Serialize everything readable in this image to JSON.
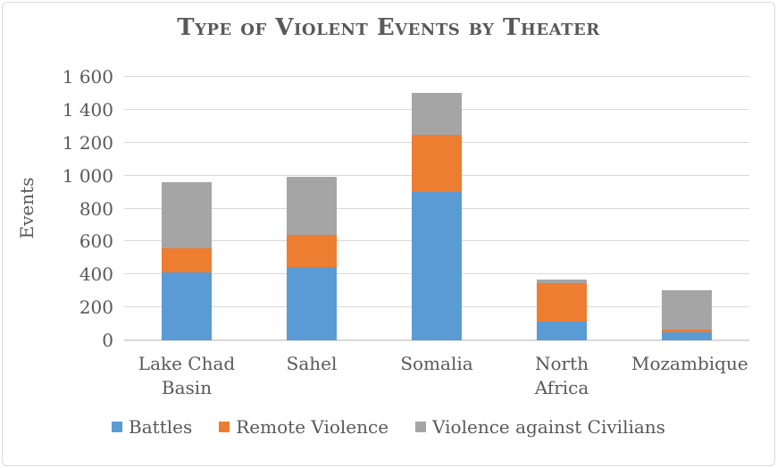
{
  "chart_data": {
    "type": "bar",
    "stacked": true,
    "title": "Type of Violent Events by Theater",
    "xlabel": "",
    "ylabel": "Events",
    "categories": [
      "Lake Chad Basin",
      "Sahel",
      "Somalia",
      "North Africa",
      "Mozambique"
    ],
    "series": [
      {
        "name": "Battles",
        "color": "#5B9BD5",
        "values": [
          410,
          445,
          900,
          115,
          50
        ]
      },
      {
        "name": "Remote Violence",
        "color": "#ED7D31",
        "values": [
          150,
          195,
          350,
          230,
          15
        ]
      },
      {
        "name": "Violence against Civilians",
        "color": "#A5A5A5",
        "values": [
          400,
          355,
          255,
          25,
          240
        ]
      }
    ],
    "totals": [
      960,
      995,
      1505,
      370,
      305
    ],
    "ylim": [
      0,
      1600
    ],
    "ytick_step": 200,
    "ytick_labels": [
      "0",
      "200",
      "400",
      "600",
      "800",
      "1 000",
      "1 200",
      "1 400",
      "1 600"
    ],
    "grid": true,
    "legend_position": "bottom"
  },
  "style": {
    "text_color": "#595959",
    "gridline_color": "#D9D9D9",
    "axis_color": "#D9D9D9",
    "border_color": "#D9D9D9",
    "background": "#FFFFFF"
  }
}
